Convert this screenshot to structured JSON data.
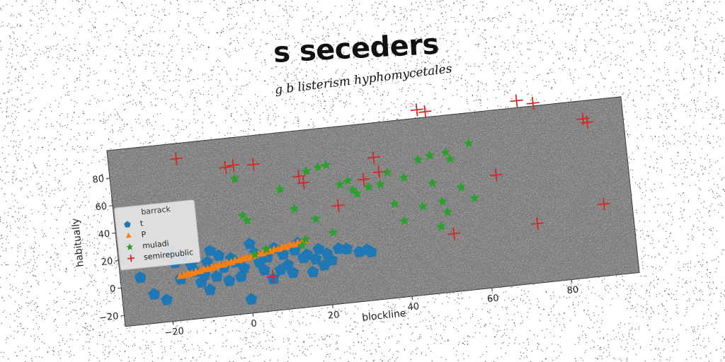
{
  "chart_data": {
    "type": "scatter",
    "title": "s seceders",
    "subtitle": "g b listerism hyphomycetales",
    "xlabel": "blockline",
    "ylabel": "habitually",
    "xlim": [
      -32,
      97
    ],
    "ylim": [
      -28,
      100
    ],
    "xticks": [
      -20,
      0,
      20,
      40,
      60,
      80
    ],
    "yticks": [
      -20,
      0,
      20,
      40,
      60,
      80
    ],
    "grid": false,
    "legend": {
      "title": "barrack",
      "placement": "center-left",
      "entries": [
        "t",
        "P",
        "muladi",
        "semirepublic"
      ]
    },
    "series": [
      {
        "name": "t",
        "marker": "pentagon",
        "color": "#1f77b4",
        "points": [
          [
            -27,
            6
          ],
          [
            -24,
            -7
          ],
          [
            -21,
            -12
          ],
          [
            -19,
            23
          ],
          [
            -18,
            14
          ],
          [
            -17,
            2
          ],
          [
            -16,
            18
          ],
          [
            -14,
            11
          ],
          [
            -13,
            6
          ],
          [
            -12,
            -2
          ],
          [
            -11,
            3
          ],
          [
            -10,
            12
          ],
          [
            -10,
            -8
          ],
          [
            -9,
            20
          ],
          [
            -8,
            1
          ],
          [
            -7,
            16
          ],
          [
            -6,
            7
          ],
          [
            -5,
            -3
          ],
          [
            -4,
            13
          ],
          [
            -3,
            10
          ],
          [
            -2,
            -1
          ],
          [
            -1,
            5
          ],
          [
            0,
            -18
          ],
          [
            1,
            22
          ],
          [
            2,
            15
          ],
          [
            3,
            8
          ],
          [
            4,
            2
          ],
          [
            5,
            11
          ],
          [
            6,
            -5
          ],
          [
            7,
            17
          ],
          [
            8,
            1
          ],
          [
            9,
            12
          ],
          [
            10,
            4
          ],
          [
            11,
            -2
          ],
          [
            12,
            14
          ],
          [
            13,
            19
          ],
          [
            14,
            8
          ],
          [
            15,
            10
          ],
          [
            16,
            -3
          ],
          [
            17,
            6
          ],
          [
            18,
            13
          ],
          [
            19,
            1
          ],
          [
            20,
            9
          ],
          [
            21,
            4
          ],
          [
            23,
            12
          ],
          [
            25,
            11
          ],
          [
            28,
            8
          ],
          [
            30,
            9
          ],
          [
            31,
            7
          ]
        ]
      },
      {
        "name": "P",
        "marker": "triangle",
        "color": "#ff7f0e",
        "points": [
          [
            -17,
            4
          ],
          [
            -16,
            4
          ],
          [
            -15,
            5
          ],
          [
            -14,
            5
          ],
          [
            -13,
            6
          ],
          [
            -12,
            6
          ],
          [
            -11,
            7
          ],
          [
            -10,
            7
          ],
          [
            -9,
            8
          ],
          [
            -8,
            8
          ],
          [
            -7,
            9
          ],
          [
            -6,
            9
          ],
          [
            -5,
            10
          ],
          [
            -4,
            10
          ],
          [
            -3,
            11
          ],
          [
            -2,
            11
          ],
          [
            -1,
            12
          ],
          [
            0,
            12
          ],
          [
            1,
            13
          ],
          [
            2,
            13
          ],
          [
            3,
            14
          ],
          [
            4,
            14
          ],
          [
            5,
            15
          ],
          [
            6,
            15
          ],
          [
            7,
            16
          ],
          [
            8,
            16
          ],
          [
            9,
            17
          ],
          [
            10,
            17
          ],
          [
            11,
            18
          ],
          [
            12,
            18
          ],
          [
            13,
            19
          ],
          [
            14,
            19
          ],
          [
            15,
            20
          ]
        ]
      },
      {
        "name": "muladi",
        "marker": "star",
        "color": "#2ca02c",
        "points": [
          [
            -1,
            70
          ],
          [
            0,
            43
          ],
          [
            1,
            39
          ],
          [
            2,
            14
          ],
          [
            5,
            17
          ],
          [
            10,
            59
          ],
          [
            13,
            44
          ],
          [
            14,
            17
          ],
          [
            15,
            21
          ],
          [
            17,
            70
          ],
          [
            18,
            35
          ],
          [
            20,
            72
          ],
          [
            22,
            73
          ],
          [
            22,
            24
          ],
          [
            25,
            58
          ],
          [
            27,
            60
          ],
          [
            28,
            53
          ],
          [
            29,
            50
          ],
          [
            32,
            54
          ],
          [
            35,
            55
          ],
          [
            37,
            63
          ],
          [
            38,
            40
          ],
          [
            40,
            27
          ],
          [
            41,
            58
          ],
          [
            45,
            70
          ],
          [
            45,
            36
          ],
          [
            48,
            72
          ],
          [
            48,
            52
          ],
          [
            49,
            20
          ],
          [
            50,
            38
          ],
          [
            51,
            30
          ],
          [
            52,
            73
          ],
          [
            53,
            68
          ],
          [
            55,
            47
          ],
          [
            58,
            38
          ],
          [
            58,
            78
          ]
        ]
      },
      {
        "name": "semirepublic",
        "marker": "plus",
        "color": "#d62728",
        "points": [
          [
            -15,
            89
          ],
          [
            -3,
            79
          ],
          [
            -1,
            80
          ],
          [
            4,
            79
          ],
          [
            6,
            -3
          ],
          [
            15,
            67
          ],
          [
            16,
            62
          ],
          [
            24,
            43
          ],
          [
            31,
            60
          ],
          [
            34,
            75
          ],
          [
            35,
            64
          ],
          [
            46,
            106
          ],
          [
            48,
            104
          ],
          [
            52,
            14
          ],
          [
            64,
            53
          ],
          [
            71,
            105
          ],
          [
            73,
            15
          ],
          [
            75,
            102
          ],
          [
            87,
            87
          ],
          [
            88,
            84
          ],
          [
            90,
            24
          ]
        ]
      }
    ]
  }
}
